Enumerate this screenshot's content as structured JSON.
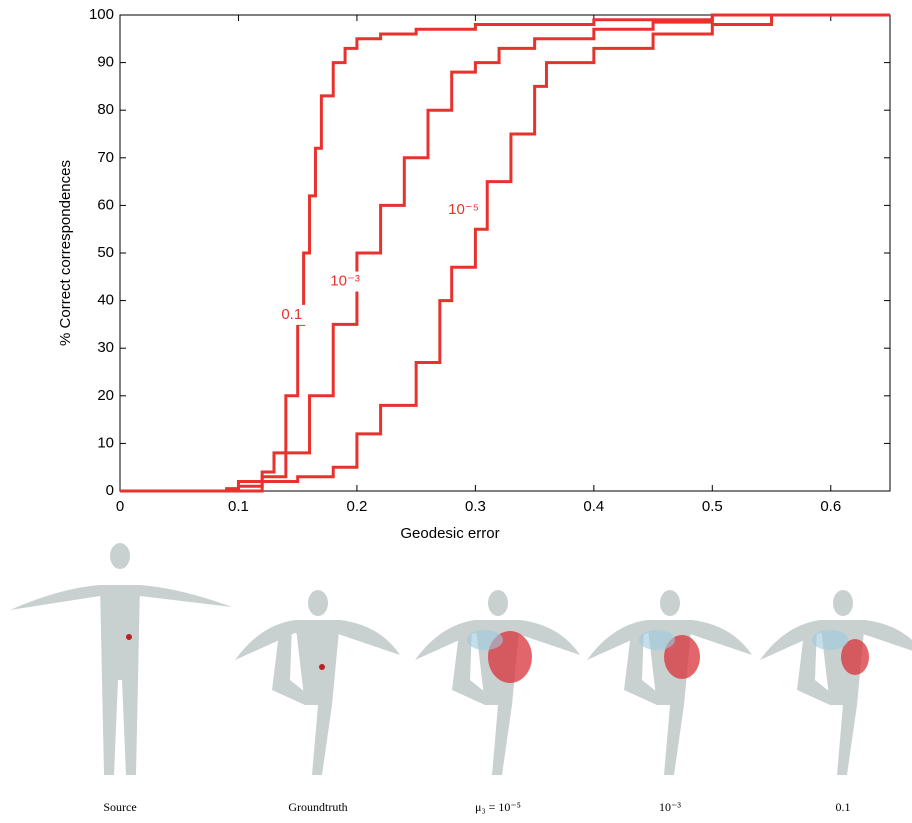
{
  "chart_data": {
    "type": "line",
    "xlabel": "Geodesic error",
    "ylabel": "% Correct correspondences",
    "xlim": [
      0,
      0.65
    ],
    "xticks": [
      0,
      0.1,
      0.2,
      0.3,
      0.4,
      0.5,
      0.6
    ],
    "ylim": [
      0,
      100
    ],
    "yticks": [
      0,
      10,
      20,
      30,
      40,
      50,
      60,
      70,
      80,
      90,
      100
    ],
    "series": [
      {
        "color": "#e8322e",
        "x": [
          0,
          0.07,
          0.09,
          0.1,
          0.12,
          0.13,
          0.14,
          0.15,
          0.155,
          0.16,
          0.165,
          0.17,
          0.18,
          0.19,
          0.2,
          0.22,
          0.25,
          0.3,
          0.4,
          0.5,
          0.65
        ],
        "values": [
          0,
          0,
          0.5,
          2,
          4,
          8,
          20,
          35,
          50,
          62,
          72,
          83,
          90,
          93,
          95,
          96,
          97,
          98,
          99,
          100,
          100
        ]
      },
      {
        "color": "#e8322e",
        "x": [
          0,
          0.09,
          0.1,
          0.12,
          0.14,
          0.16,
          0.18,
          0.2,
          0.22,
          0.24,
          0.26,
          0.28,
          0.3,
          0.32,
          0.35,
          0.4,
          0.45,
          0.5,
          0.65
        ],
        "values": [
          0,
          0,
          1,
          3,
          8,
          20,
          35,
          50,
          60,
          70,
          80,
          88,
          90,
          93,
          95,
          97,
          98.5,
          100,
          100
        ]
      },
      {
        "color": "#e8322e",
        "x": [
          0,
          0.1,
          0.12,
          0.15,
          0.18,
          0.2,
          0.22,
          0.25,
          0.27,
          0.28,
          0.3,
          0.31,
          0.33,
          0.35,
          0.36,
          0.4,
          0.45,
          0.5,
          0.55,
          0.65
        ],
        "values": [
          0,
          0,
          2,
          3,
          5,
          12,
          18,
          27,
          40,
          47,
          55,
          65,
          75,
          85,
          90,
          93,
          96,
          98,
          100,
          100
        ]
      }
    ],
    "annotations": [
      {
        "text": "0.1",
        "x": 0.145,
        "y": 37
      },
      {
        "text": "10⁻³",
        "x": 0.19,
        "y": 44
      },
      {
        "text": "10⁻⁵",
        "x": 0.29,
        "y": 59
      }
    ]
  },
  "figures": {
    "captions": [
      "Source",
      "Groundtruth",
      "μ₃ = 10⁻⁵",
      "10⁻³",
      "0.1"
    ]
  }
}
